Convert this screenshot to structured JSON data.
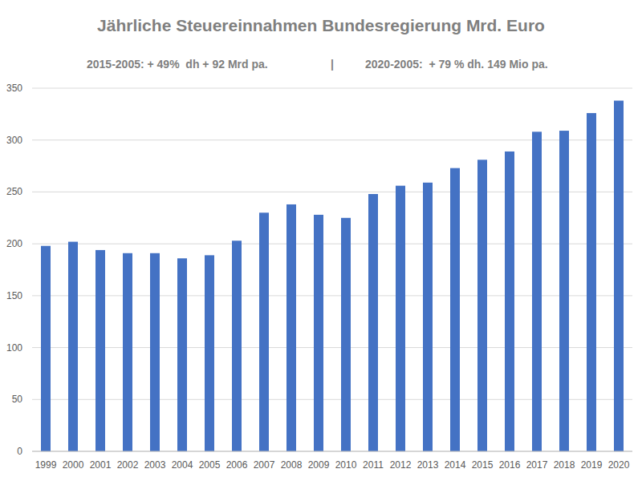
{
  "chart_data": {
    "type": "bar",
    "title": "Jährliche Steuereinnahmen Bundesregierung Mrd. Euro",
    "annotations": [
      "2015-2005: + 49%  dh + 92 Mrd pa.",
      "|",
      "2020-2005:  + 79 % dh. 149 Mio pa."
    ],
    "categories": [
      "1999",
      "2000",
      "2001",
      "2002",
      "2003",
      "2004",
      "2005",
      "2006",
      "2007",
      "2008",
      "2009",
      "2010",
      "2011",
      "2012",
      "2013",
      "2014",
      "2015",
      "2016",
      "2017",
      "2018",
      "2019",
      "2020"
    ],
    "values": [
      198,
      202,
      194,
      191,
      191,
      186,
      189,
      203,
      230,
      238,
      228,
      225,
      248,
      256,
      259,
      273,
      281,
      289,
      308,
      309,
      326,
      338
    ],
    "color": "#4472c4",
    "ylim": [
      0,
      350
    ],
    "yticks": [
      0,
      50,
      100,
      150,
      200,
      250,
      300,
      350
    ],
    "grid": true
  }
}
